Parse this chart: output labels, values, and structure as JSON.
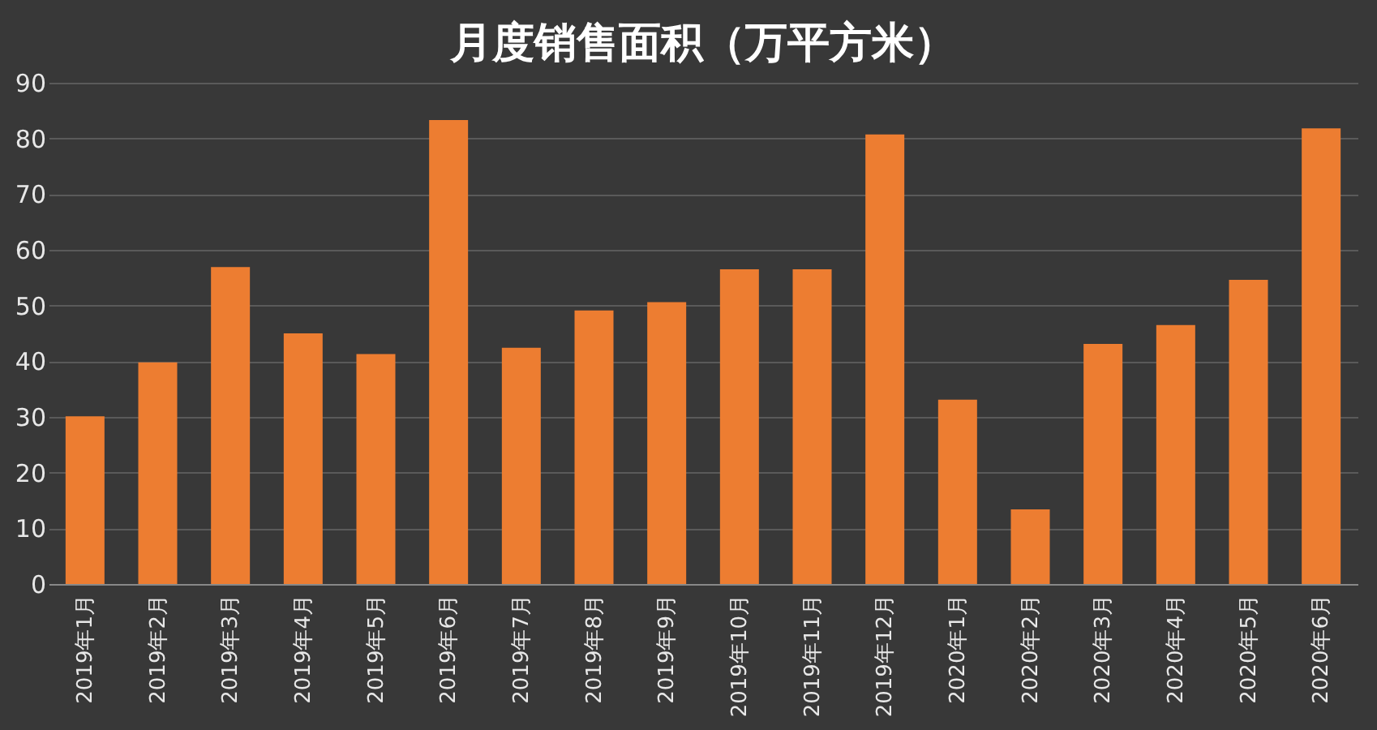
{
  "chart_data": {
    "type": "bar",
    "title": "月度销售面积（万平方米）",
    "categories": [
      "2019年1月",
      "2019年2月",
      "2019年3月",
      "2019年4月",
      "2019年5月",
      "2019年6月",
      "2019年7月",
      "2019年8月",
      "2019年9月",
      "2019年10月",
      "2019年11月",
      "2019年12月",
      "2020年1月",
      "2020年2月",
      "2020年3月",
      "2020年4月",
      "2020年5月",
      "2020年6月"
    ],
    "values": [
      30.1,
      39.8,
      56.9,
      45,
      41.3,
      83.3,
      42.4,
      49.1,
      50.6,
      56.5,
      56.5,
      80.7,
      33.1,
      13.4,
      43.1,
      46.5,
      54.6,
      81.8
    ],
    "color": "#ed7d31",
    "ylim": [
      0,
      90
    ],
    "yticks": [
      0,
      10,
      20,
      30,
      40,
      50,
      60,
      70,
      80,
      90
    ],
    "grid": "y"
  }
}
